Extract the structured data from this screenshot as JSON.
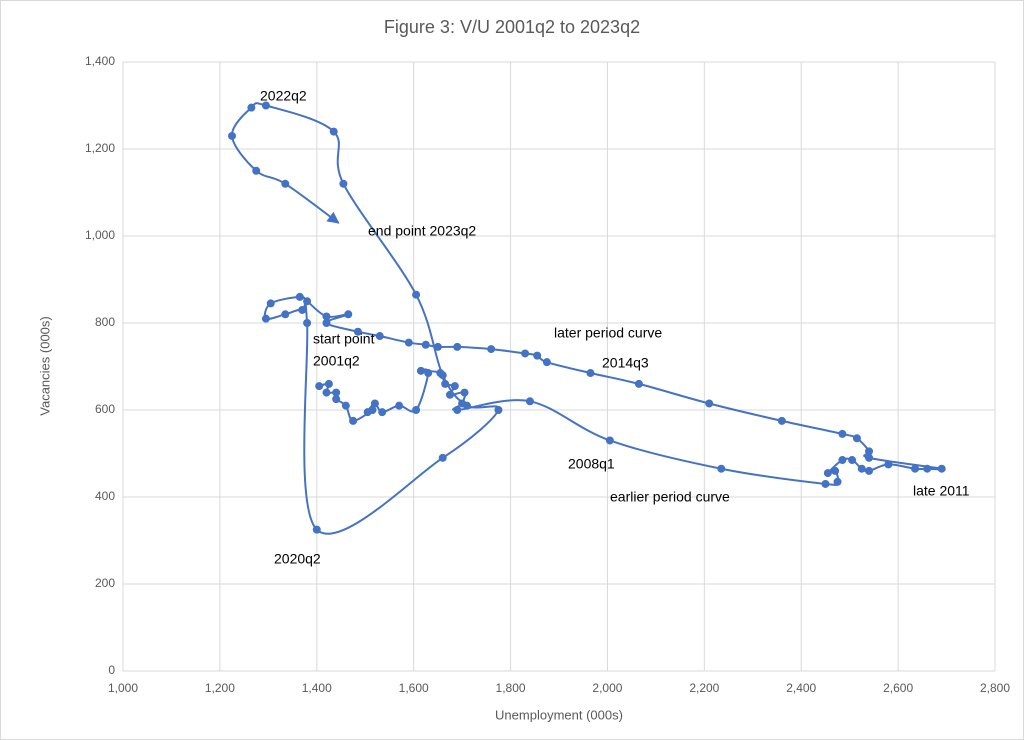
{
  "chart_data": {
    "type": "line",
    "title": "Figure 3: V/U 2001q2 to 2023q2",
    "x_label": "Unemployment (000s)",
    "y_label": "Vacancies (000s)",
    "grid": true,
    "smooth": true,
    "markers": true,
    "end_arrow": true,
    "xlim": [
      1000,
      2800
    ],
    "ylim": [
      0,
      1400
    ],
    "xticks": [
      {
        "value": 1000,
        "label": "1,000"
      },
      {
        "value": 1200,
        "label": "1,200"
      },
      {
        "value": 1400,
        "label": "1,400"
      },
      {
        "value": 1600,
        "label": "1,600"
      },
      {
        "value": 1800,
        "label": "1,800"
      },
      {
        "value": 2000,
        "label": "2,000"
      },
      {
        "value": 2200,
        "label": "2,200"
      },
      {
        "value": 2400,
        "label": "2,400"
      },
      {
        "value": 2600,
        "label": "2,600"
      },
      {
        "value": 2800,
        "label": "2,800"
      }
    ],
    "yticks": [
      0,
      200,
      400,
      600,
      800,
      {
        "value": 1000,
        "label": "1,000"
      },
      {
        "value": 1200,
        "label": "1,200"
      },
      {
        "value": 1400,
        "label": "1,400"
      }
    ],
    "annotations": [
      "2022q2",
      "end point 2023q2",
      "later period curve",
      "start point",
      "2001q2",
      "2014q3",
      "2008q1",
      "earlier period curve",
      "late 2011",
      "2020q2"
    ],
    "series": [
      {
        "color": "#4472c4",
        "x": [
          1405,
          1425,
          1420,
          1440,
          1440,
          1460,
          1475,
          1515,
          1505,
          1520,
          1535,
          1570,
          1605,
          1630,
          1615,
          1655,
          1665,
          1685,
          1675,
          1705,
          1700,
          1690,
          1840,
          2005,
          2235,
          2450,
          2475,
          2470,
          2455,
          2485,
          2505,
          2525,
          2540,
          2580,
          2635,
          2660,
          2690,
          2540,
          2540,
          2515,
          2485,
          2360,
          2210,
          2065,
          1965,
          1875,
          1855,
          1830,
          1760,
          1690,
          1650,
          1625,
          1590,
          1530,
          1485,
          1420,
          1465,
          1420,
          1380,
          1365,
          1305,
          1295,
          1335,
          1370,
          1380,
          1400,
          1660,
          1775,
          1710,
          1660,
          1605,
          1455,
          1435,
          1295,
          1265,
          1225,
          1275,
          1335,
          1445
        ],
        "values": [
          655,
          660,
          640,
          640,
          625,
          610,
          575,
          600,
          595,
          615,
          595,
          610,
          600,
          685,
          690,
          685,
          660,
          655,
          635,
          640,
          615,
          600,
          620,
          530,
          465,
          430,
          435,
          460,
          455,
          485,
          485,
          465,
          460,
          475,
          465,
          465,
          465,
          490,
          505,
          535,
          545,
          575,
          615,
          660,
          685,
          710,
          725,
          730,
          740,
          745,
          745,
          750,
          755,
          770,
          780,
          800,
          820,
          815,
          850,
          860,
          845,
          810,
          820,
          830,
          800,
          325,
          490,
          600,
          610,
          680,
          865,
          1120,
          1240,
          1300,
          1295,
          1230,
          1150,
          1120,
          1030
        ]
      }
    ]
  }
}
